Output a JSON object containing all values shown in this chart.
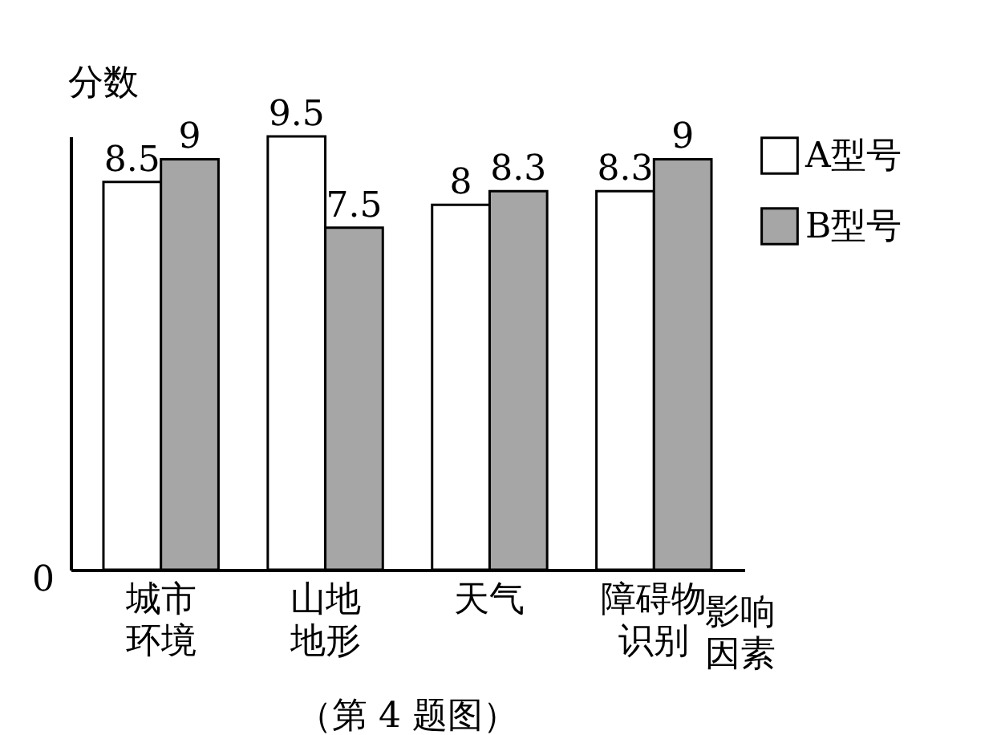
{
  "chart_data": {
    "type": "bar",
    "xlabel": "影响因素",
    "ylabel": "分数",
    "categories": [
      "城市环境",
      "山地地形",
      "天气",
      "障碍物识别"
    ],
    "series": [
      {
        "name": "A型号",
        "color": "#ffffff",
        "values": [
          8.5,
          9.5,
          8,
          8.3
        ]
      },
      {
        "name": "B型号",
        "color": "#a6a6a6",
        "values": [
          9,
          7.5,
          8.3,
          9
        ]
      }
    ],
    "data_labels": true,
    "legend": "right",
    "annotations": [
      "0",
      "（第 4 题图）"
    ]
  }
}
